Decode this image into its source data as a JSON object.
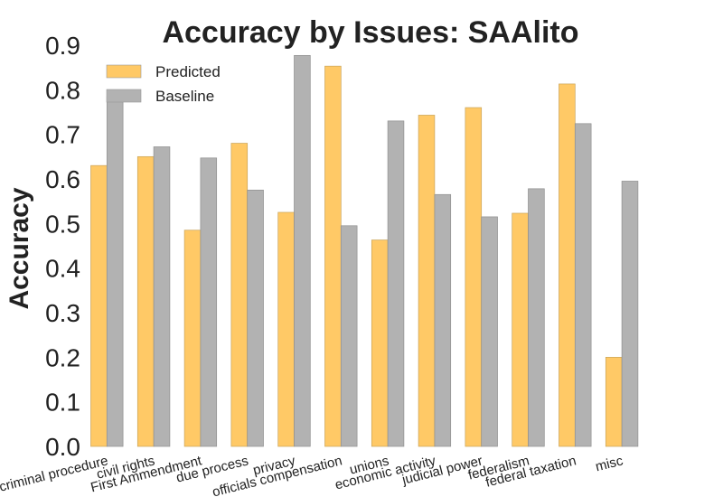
{
  "chart_data": {
    "type": "bar",
    "title": "Accuracy by Issues: SAAlito",
    "xlabel": "",
    "ylabel": "Accuracy",
    "ylim": [
      0,
      0.9
    ],
    "yticks": [
      "0.0",
      "0.1",
      "0.2",
      "0.3",
      "0.4",
      "0.5",
      "0.6",
      "0.7",
      "0.8",
      "0.9"
    ],
    "grid": false,
    "legend_position": "top-left",
    "categories": [
      "criminal procedure",
      "civil rights",
      "First Ammendment",
      "due process",
      "privacy",
      "officials compensation",
      "unions",
      "economic activity",
      "judicial power",
      "federalism",
      "federal taxation",
      "misc"
    ],
    "series": [
      {
        "name": "Predicted",
        "color": "#ffc966",
        "values": [
          0.63,
          0.65,
          0.485,
          0.68,
          0.525,
          0.853,
          0.463,
          0.743,
          0.76,
          0.523,
          0.813,
          0.2
        ]
      },
      {
        "name": "Baseline",
        "color": "#b2b2b2",
        "values": [
          0.785,
          0.672,
          0.647,
          0.575,
          0.877,
          0.495,
          0.73,
          0.565,
          0.515,
          0.578,
          0.724,
          0.595
        ]
      }
    ]
  }
}
